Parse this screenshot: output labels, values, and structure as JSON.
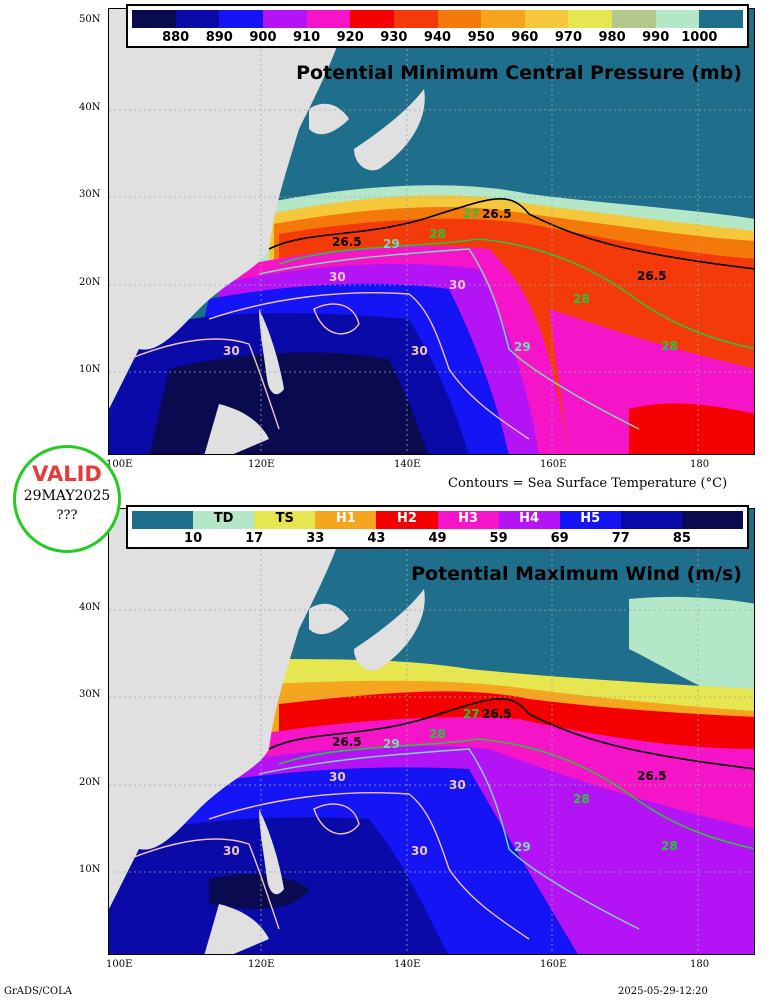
{
  "top_panel": {
    "title": "Potential Minimum Central Pressure (mb)",
    "legend_values": [
      "880",
      "890",
      "900",
      "910",
      "920",
      "930",
      "940",
      "950",
      "960",
      "970",
      "980",
      "990",
      "1000"
    ],
    "legend_colors": [
      "#0a0a50",
      "#0a0aa8",
      "#1414f5",
      "#b414f5",
      "#f514c8",
      "#f50000",
      "#f53a0a",
      "#f5780a",
      "#f5a51e",
      "#f5c83c",
      "#e6e650",
      "#b4c88c",
      "#b4e6c8",
      "#1e6e8c"
    ]
  },
  "bottom_panel": {
    "title": "Potential Maximum Wind (m/s)",
    "legend_categories": [
      "",
      "TD",
      "TS",
      "H1",
      "H2",
      "H3",
      "H4",
      "H5",
      "",
      ""
    ],
    "legend_values": [
      "10",
      "17",
      "33",
      "43",
      "49",
      "59",
      "69",
      "77",
      "85"
    ],
    "legend_colors": [
      "#1e6e8c",
      "#b4e6c8",
      "#e6e650",
      "#f5a51e",
      "#f50000",
      "#f514c8",
      "#b414f5",
      "#1414f5",
      "#0a0aa8",
      "#0a0a50"
    ]
  },
  "axes": {
    "lat_labels": [
      "50N",
      "40N",
      "30N",
      "20N",
      "10N"
    ],
    "lat_labels_bottom": [
      "40N",
      "30N",
      "20N",
      "10N"
    ],
    "lon_labels": [
      "100E",
      "120E",
      "140E",
      "160E",
      "180"
    ]
  },
  "contour_labels": [
    "26.5",
    "26.5",
    "26.5",
    "27",
    "28",
    "28",
    "28",
    "29",
    "29",
    "30",
    "30",
    "30",
    "30"
  ],
  "sst_caption": "Contours = Sea Surface Temperature (°C)",
  "valid": {
    "label": "VALID",
    "date": "29MAY2025",
    "extra": "???"
  },
  "footer": {
    "source": "GrADS/COLA",
    "timestamp": "2025-05-29-12:20"
  },
  "colors": {
    "land": "#e0e0e0",
    "deep_ocean": "#1e6e8c",
    "badge_border": "#22cc22",
    "valid_text": "#e53b3b"
  }
}
